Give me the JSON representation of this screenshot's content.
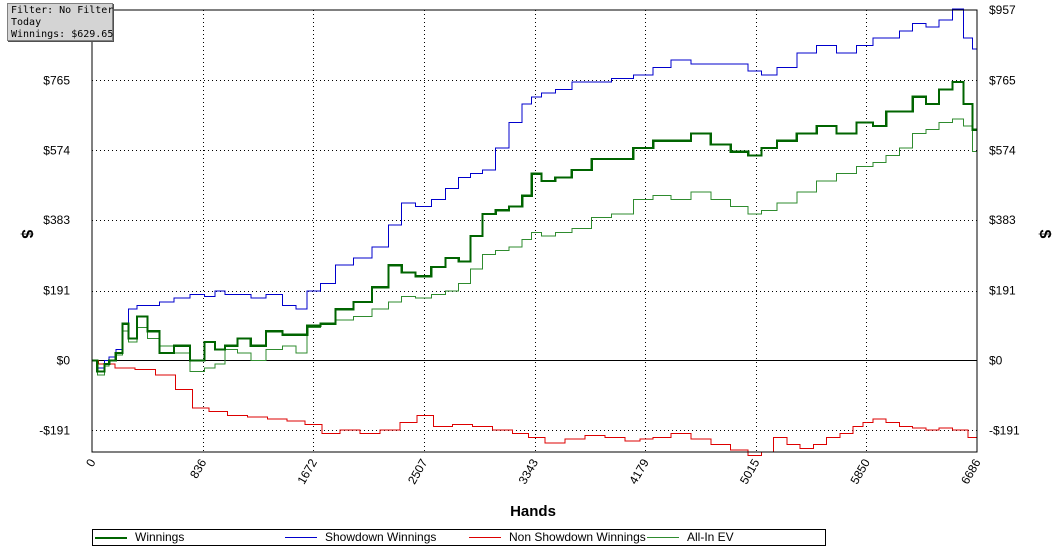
{
  "filter_box": {
    "line1": "Filter: No Filter",
    "line2": "Today",
    "line3": "Winnings: $629.65"
  },
  "chart_data": {
    "type": "line",
    "xlabel": "Hands",
    "ylabel": "$",
    "xlim": [
      0,
      6686
    ],
    "ylim": [
      -250,
      957
    ],
    "x_ticks": [
      0,
      836,
      1672,
      2507,
      3343,
      4179,
      5015,
      5850,
      6686
    ],
    "y_ticks": [
      -191,
      0,
      191,
      383,
      574,
      765,
      957
    ],
    "y_tick_labels": [
      "-$191",
      "$0",
      "$191",
      "$383",
      "$574",
      "$765",
      "$957"
    ],
    "grid": true,
    "legend_placement": "bottom",
    "series": [
      {
        "name": "Winnings",
        "color": "#006400",
        "x": [
          0,
          80,
          110,
          150,
          210,
          250,
          300,
          380,
          460,
          560,
          680,
          800,
          900,
          960,
          1050,
          1150,
          1250,
          1380,
          1500,
          1580,
          1672,
          1780,
          1900,
          2050,
          2180,
          2300,
          2380,
          2507,
          2620,
          2720,
          2820,
          2900,
          3000,
          3100,
          3200,
          3300,
          3343,
          3450,
          3550,
          3700,
          3850,
          4000,
          4179,
          4300,
          4450,
          4600,
          4750,
          4900,
          5015,
          5100,
          5250,
          5400,
          5550,
          5700,
          5850,
          5950,
          6050,
          6150,
          6250,
          6350,
          6450,
          6550,
          6620,
          6686
        ],
        "y": [
          0,
          -30,
          -10,
          0,
          20,
          100,
          60,
          120,
          80,
          20,
          40,
          0,
          50,
          30,
          40,
          60,
          40,
          80,
          70,
          70,
          95,
          100,
          140,
          160,
          200,
          260,
          240,
          230,
          255,
          280,
          270,
          340,
          400,
          410,
          420,
          450,
          510,
          490,
          500,
          520,
          550,
          550,
          580,
          600,
          600,
          620,
          590,
          570,
          560,
          580,
          600,
          620,
          640,
          620,
          650,
          640,
          680,
          680,
          720,
          700,
          740,
          760,
          700,
          630
        ]
      },
      {
        "name": "Showdown Winnings",
        "color": "#0000cc",
        "x": [
          0,
          80,
          110,
          150,
          210,
          250,
          300,
          380,
          460,
          560,
          680,
          800,
          900,
          960,
          1050,
          1150,
          1250,
          1380,
          1500,
          1580,
          1672,
          1780,
          1900,
          2050,
          2180,
          2300,
          2380,
          2507,
          2620,
          2720,
          2820,
          2900,
          3000,
          3100,
          3200,
          3300,
          3343,
          3450,
          3550,
          3700,
          3850,
          4000,
          4179,
          4300,
          4450,
          4600,
          4750,
          4900,
          5015,
          5100,
          5250,
          5400,
          5550,
          5700,
          5850,
          5950,
          6050,
          6150,
          6250,
          6350,
          6450,
          6550,
          6620,
          6686
        ],
        "y": [
          0,
          -20,
          0,
          10,
          30,
          100,
          140,
          150,
          150,
          160,
          170,
          180,
          175,
          190,
          180,
          180,
          170,
          180,
          150,
          140,
          190,
          210,
          260,
          280,
          310,
          370,
          430,
          420,
          440,
          470,
          500,
          510,
          520,
          580,
          650,
          700,
          720,
          730,
          740,
          760,
          760,
          770,
          780,
          800,
          820,
          810,
          810,
          810,
          790,
          780,
          800,
          840,
          860,
          840,
          860,
          880,
          880,
          900,
          920,
          910,
          930,
          960,
          880,
          850
        ]
      },
      {
        "name": "Non Showdown Winnings",
        "color": "#dd0000",
        "x": [
          0,
          100,
          250,
          400,
          560,
          700,
          820,
          950,
          1100,
          1250,
          1400,
          1550,
          1672,
          1800,
          1950,
          2100,
          2250,
          2400,
          2507,
          2650,
          2800,
          2950,
          3100,
          3250,
          3343,
          3500,
          3650,
          3800,
          3950,
          4100,
          4179,
          4300,
          4450,
          4600,
          4750,
          4900,
          5015,
          5100,
          5200,
          5300,
          5400,
          5500,
          5600,
          5700,
          5800,
          5850,
          5950,
          6050,
          6150,
          6250,
          6350,
          6450,
          6550,
          6686
        ],
        "y": [
          0,
          -10,
          -20,
          -25,
          -40,
          -80,
          -130,
          -140,
          -150,
          -155,
          -160,
          -165,
          -175,
          -200,
          -190,
          -200,
          -190,
          -170,
          -150,
          -180,
          -175,
          -180,
          -190,
          -200,
          -210,
          -225,
          -215,
          -205,
          -210,
          -220,
          -215,
          -210,
          -200,
          -215,
          -230,
          -245,
          -260,
          -250,
          -210,
          -230,
          -240,
          -230,
          -210,
          -200,
          -180,
          -170,
          -160,
          -170,
          -180,
          -185,
          -190,
          -185,
          -190,
          -210
        ]
      },
      {
        "name": "All-In EV",
        "color": "#2e8b2e",
        "x": [
          0,
          80,
          110,
          150,
          210,
          250,
          300,
          380,
          460,
          560,
          680,
          800,
          900,
          960,
          1050,
          1150,
          1250,
          1380,
          1500,
          1580,
          1672,
          1780,
          1900,
          2050,
          2180,
          2300,
          2380,
          2507,
          2620,
          2720,
          2820,
          2900,
          3000,
          3100,
          3200,
          3300,
          3343,
          3450,
          3550,
          3700,
          3850,
          4000,
          4179,
          4300,
          4450,
          4600,
          4750,
          4900,
          5015,
          5100,
          5250,
          5400,
          5550,
          5700,
          5850,
          5950,
          6050,
          6150,
          6250,
          6350,
          6450,
          6550,
          6620,
          6686
        ],
        "y": [
          0,
          -40,
          -15,
          0,
          15,
          80,
          50,
          90,
          60,
          40,
          20,
          -30,
          -20,
          -10,
          30,
          20,
          0,
          30,
          40,
          20,
          90,
          100,
          110,
          120,
          140,
          160,
          175,
          170,
          180,
          190,
          210,
          250,
          290,
          300,
          310,
          330,
          350,
          340,
          350,
          360,
          390,
          400,
          440,
          450,
          440,
          460,
          440,
          420,
          400,
          410,
          430,
          460,
          490,
          510,
          530,
          540,
          560,
          580,
          620,
          630,
          650,
          660,
          640,
          570
        ]
      }
    ]
  }
}
